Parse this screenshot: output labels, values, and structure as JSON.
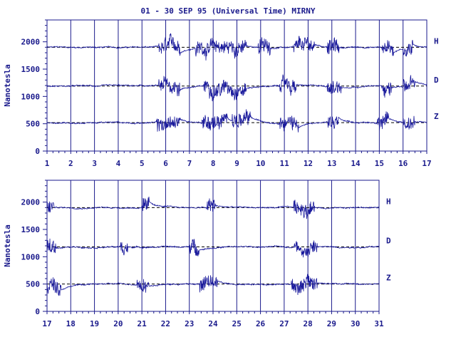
{
  "title": "01 - 30 SEP 95 (Universal Time) MIRNY",
  "colors": {
    "trace": "#1a1a9c",
    "axis": "#1a1a8c",
    "baseline": "#000000",
    "background": "#ffffff"
  },
  "chart_data": [
    {
      "type": "line",
      "ylabel": "Nanotesla",
      "xlabel": "",
      "xlim": [
        1,
        17
      ],
      "ylim": [
        0,
        2400
      ],
      "xticks": [
        "1",
        "2",
        "3",
        "4",
        "5",
        "6",
        "7",
        "8",
        "9",
        "10",
        "11",
        "12",
        "13",
        "14",
        "15",
        "16",
        "17"
      ],
      "yticks": [
        "0",
        "500",
        "1000",
        "1500",
        "2000"
      ],
      "grid_x": true,
      "series": [
        {
          "name": "H",
          "baseline": 1900,
          "active_days": [
            [
              5.7,
              6.6
            ],
            [
              7.2,
              8.6
            ],
            [
              8.6,
              9.4
            ],
            [
              9.9,
              10.4
            ],
            [
              11.4,
              12.3
            ],
            [
              12.8,
              13.3
            ],
            [
              15.1,
              15.6
            ],
            [
              16.0,
              16.4
            ]
          ]
        },
        {
          "name": "D",
          "baseline": 1190,
          "active_days": [
            [
              5.7,
              6.6
            ],
            [
              7.6,
              8.8
            ],
            [
              8.8,
              9.4
            ],
            [
              10.8,
              11.5
            ],
            [
              12.8,
              13.4
            ],
            [
              15.1,
              15.5
            ],
            [
              16.0,
              16.5
            ]
          ]
        },
        {
          "name": "Z",
          "baseline": 520,
          "active_days": [
            [
              5.6,
              6.6
            ],
            [
              7.5,
              8.6
            ],
            [
              8.8,
              9.6
            ],
            [
              10.8,
              11.6
            ],
            [
              12.8,
              13.3
            ],
            [
              14.9,
              15.4
            ],
            [
              16.0,
              16.5
            ]
          ]
        }
      ]
    },
    {
      "type": "line",
      "ylabel": "Nanotesla",
      "xlabel": "",
      "xlim": [
        17,
        31
      ],
      "ylim": [
        0,
        2400
      ],
      "xticks": [
        "17",
        "18",
        "19",
        "20",
        "21",
        "22",
        "23",
        "24",
        "25",
        "26",
        "27",
        "28",
        "29",
        "30",
        "31"
      ],
      "yticks": [
        "0",
        "500",
        "1000",
        "1500",
        "2000"
      ],
      "grid_x": true,
      "series": [
        {
          "name": "H",
          "baseline": 1900,
          "active_days": [
            [
              17.0,
              17.3
            ],
            [
              21.0,
              21.3
            ],
            [
              23.7,
              24.1
            ],
            [
              27.4,
              28.3
            ]
          ]
        },
        {
          "name": "D",
          "baseline": 1180,
          "active_days": [
            [
              17.0,
              17.4
            ],
            [
              20.1,
              20.4
            ],
            [
              23.0,
              23.4
            ],
            [
              27.4,
              28.4
            ]
          ]
        },
        {
          "name": "Z",
          "baseline": 500,
          "active_days": [
            [
              17.0,
              17.6
            ],
            [
              20.8,
              21.3
            ],
            [
              23.4,
              24.2
            ],
            [
              27.3,
              28.4
            ]
          ]
        }
      ]
    }
  ]
}
